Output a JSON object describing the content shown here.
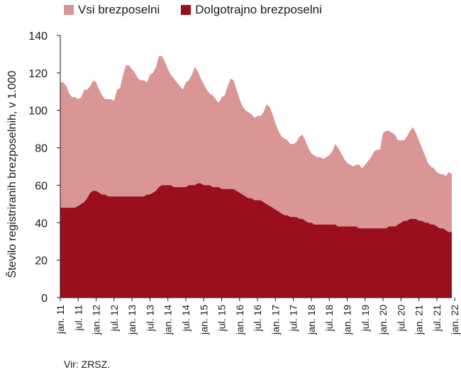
{
  "chart_data": {
    "type": "area",
    "ylabel": "Število registriranih brezposelnih, v 1.000",
    "ylim": [
      0,
      140
    ],
    "yticks": [
      0,
      20,
      40,
      60,
      80,
      100,
      120,
      140
    ],
    "x_start": "jan. 11",
    "x_end": "jan. 22",
    "xtick_labels": [
      "jan. 11",
      "jul. 11",
      "jan. 12",
      "jul. 12",
      "jan. 13",
      "jul. 13",
      "jan. 14",
      "jul. 14",
      "jan. 15",
      "jul. 15",
      "jan. 16",
      "jul. 16",
      "jan. 17",
      "jul. 17",
      "jan. 18",
      "jul. 18",
      "jan. 19",
      "jul. 19",
      "jan. 20",
      "jul. 20",
      "jan. 21",
      "jul. 21",
      "jan. 22"
    ],
    "legend_position": "top",
    "grid": false,
    "series": [
      {
        "name": "Vsi brezposelni",
        "color": "#d99694",
        "values": [
          115,
          115,
          113,
          109,
          107,
          107,
          106,
          107,
          111,
          111,
          113,
          116,
          115,
          111,
          108,
          106,
          106,
          106,
          105,
          111,
          112,
          119,
          124,
          124,
          122,
          120,
          117,
          116,
          116,
          115,
          119,
          120,
          123,
          129,
          129,
          126,
          122,
          119,
          117,
          115,
          113,
          111,
          115,
          116,
          119,
          123,
          121,
          117,
          114,
          111,
          109,
          108,
          106,
          104,
          107,
          108,
          113,
          117,
          116,
          111,
          106,
          102,
          100,
          99,
          98,
          96,
          97,
          97,
          99,
          103,
          102,
          98,
          93,
          89,
          86,
          85,
          84,
          82,
          82,
          83,
          86,
          87,
          84,
          80,
          77,
          76,
          75,
          75,
          74,
          75,
          76,
          78,
          82,
          80,
          77,
          74,
          72,
          71,
          70,
          71,
          71,
          69,
          71,
          73,
          75,
          78,
          79,
          79,
          88,
          89,
          89,
          88,
          87,
          84,
          84,
          84,
          86,
          89,
          91,
          88,
          84,
          80,
          76,
          72,
          70,
          69,
          67,
          66,
          66,
          65,
          67,
          66
        ]
      },
      {
        "name": "Dolgotrajno brezposelni",
        "color": "#9b0e1e",
        "values": [
          48,
          48,
          48,
          48,
          48,
          48,
          49,
          50,
          51,
          53,
          56,
          57,
          57,
          56,
          55,
          55,
          54,
          54,
          54,
          54,
          54,
          54,
          54,
          54,
          54,
          54,
          54,
          54,
          54,
          55,
          55,
          56,
          57,
          59,
          60,
          60,
          60,
          60,
          59,
          59,
          59,
          59,
          59,
          60,
          60,
          60,
          61,
          61,
          60,
          60,
          60,
          59,
          59,
          59,
          58,
          58,
          58,
          58,
          58,
          57,
          56,
          55,
          54,
          53,
          53,
          52,
          52,
          52,
          51,
          50,
          49,
          48,
          47,
          46,
          45,
          44,
          44,
          43,
          43,
          43,
          42,
          42,
          41,
          40,
          40,
          39,
          39,
          39,
          39,
          39,
          39,
          39,
          39,
          38,
          38,
          38,
          38,
          38,
          38,
          38,
          37,
          37,
          37,
          37,
          37,
          37,
          37,
          37,
          37,
          37,
          38,
          38,
          38,
          39,
          40,
          41,
          41,
          42,
          42,
          42,
          41,
          41,
          40,
          40,
          39,
          39,
          38,
          37,
          37,
          36,
          35,
          35
        ]
      }
    ]
  },
  "source": "Vir: ZRSZ."
}
